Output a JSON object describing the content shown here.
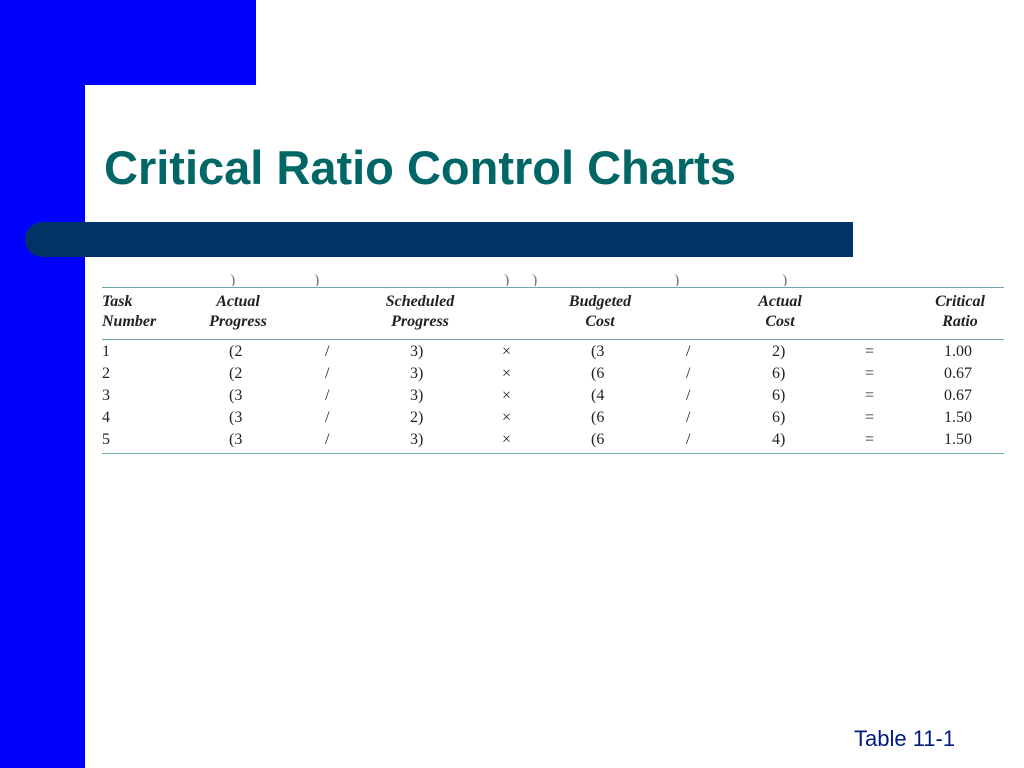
{
  "slide": {
    "title": "Critical Ratio Control Charts",
    "footer": "Table 11-1",
    "colors": {
      "accent": "#0000ff",
      "title_text": "#006666",
      "title_bar": "#003366",
      "rule": "#6fa9ad"
    }
  },
  "table": {
    "headers": {
      "task_number": [
        "Task",
        "Number"
      ],
      "actual_progress": [
        "Actual",
        "Progress"
      ],
      "scheduled_progress": [
        "Scheduled",
        "Progress"
      ],
      "budgeted_cost": [
        "Budgeted",
        "Cost"
      ],
      "actual_cost": [
        "Actual",
        "Cost"
      ],
      "critical_ratio": [
        "Critical",
        "Ratio"
      ]
    },
    "operators": {
      "divide": "/",
      "multiply": "×",
      "equals": "="
    },
    "rows": [
      {
        "task": "1",
        "actual_progress": "(2",
        "scheduled_progress": "3)",
        "budgeted_cost": "(3",
        "actual_cost": "2)",
        "critical_ratio": "1.00"
      },
      {
        "task": "2",
        "actual_progress": "(2",
        "scheduled_progress": "3)",
        "budgeted_cost": "(6",
        "actual_cost": "6)",
        "critical_ratio": "0.67"
      },
      {
        "task": "3",
        "actual_progress": "(3",
        "scheduled_progress": "3)",
        "budgeted_cost": "(4",
        "actual_cost": "6)",
        "critical_ratio": "0.67"
      },
      {
        "task": "4",
        "actual_progress": "(3",
        "scheduled_progress": "2)",
        "budgeted_cost": "(6",
        "actual_cost": "6)",
        "critical_ratio": "1.50"
      },
      {
        "task": "5",
        "actual_progress": "(3",
        "scheduled_progress": "3)",
        "budgeted_cost": "(6",
        "actual_cost": "4)",
        "critical_ratio": "1.50"
      }
    ]
  }
}
